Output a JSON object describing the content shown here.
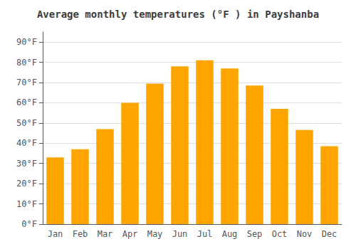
{
  "chart_data": {
    "type": "bar",
    "title": "Average monthly temperatures (°F ) in Payshanba",
    "categories": [
      "Jan",
      "Feb",
      "Mar",
      "Apr",
      "May",
      "Jun",
      "Jul",
      "Aug",
      "Sep",
      "Oct",
      "Nov",
      "Dec"
    ],
    "values": [
      33,
      37,
      47,
      60,
      69.5,
      78,
      81,
      77,
      68.5,
      57,
      46.5,
      38.5
    ],
    "color": "#FFA500",
    "ylim": [
      0,
      95
    ],
    "yticks": [
      {
        "value": 0,
        "label": "0°F"
      },
      {
        "value": 10,
        "label": "10°F"
      },
      {
        "value": 20,
        "label": "20°F"
      },
      {
        "value": 30,
        "label": "30°F"
      },
      {
        "value": 40,
        "label": "40°F"
      },
      {
        "value": 50,
        "label": "50°F"
      },
      {
        "value": 60,
        "label": "60°F"
      },
      {
        "value": 70,
        "label": "70°F"
      },
      {
        "value": 80,
        "label": "80°F"
      },
      {
        "value": 90,
        "label": "90°F"
      }
    ],
    "grid": true
  }
}
